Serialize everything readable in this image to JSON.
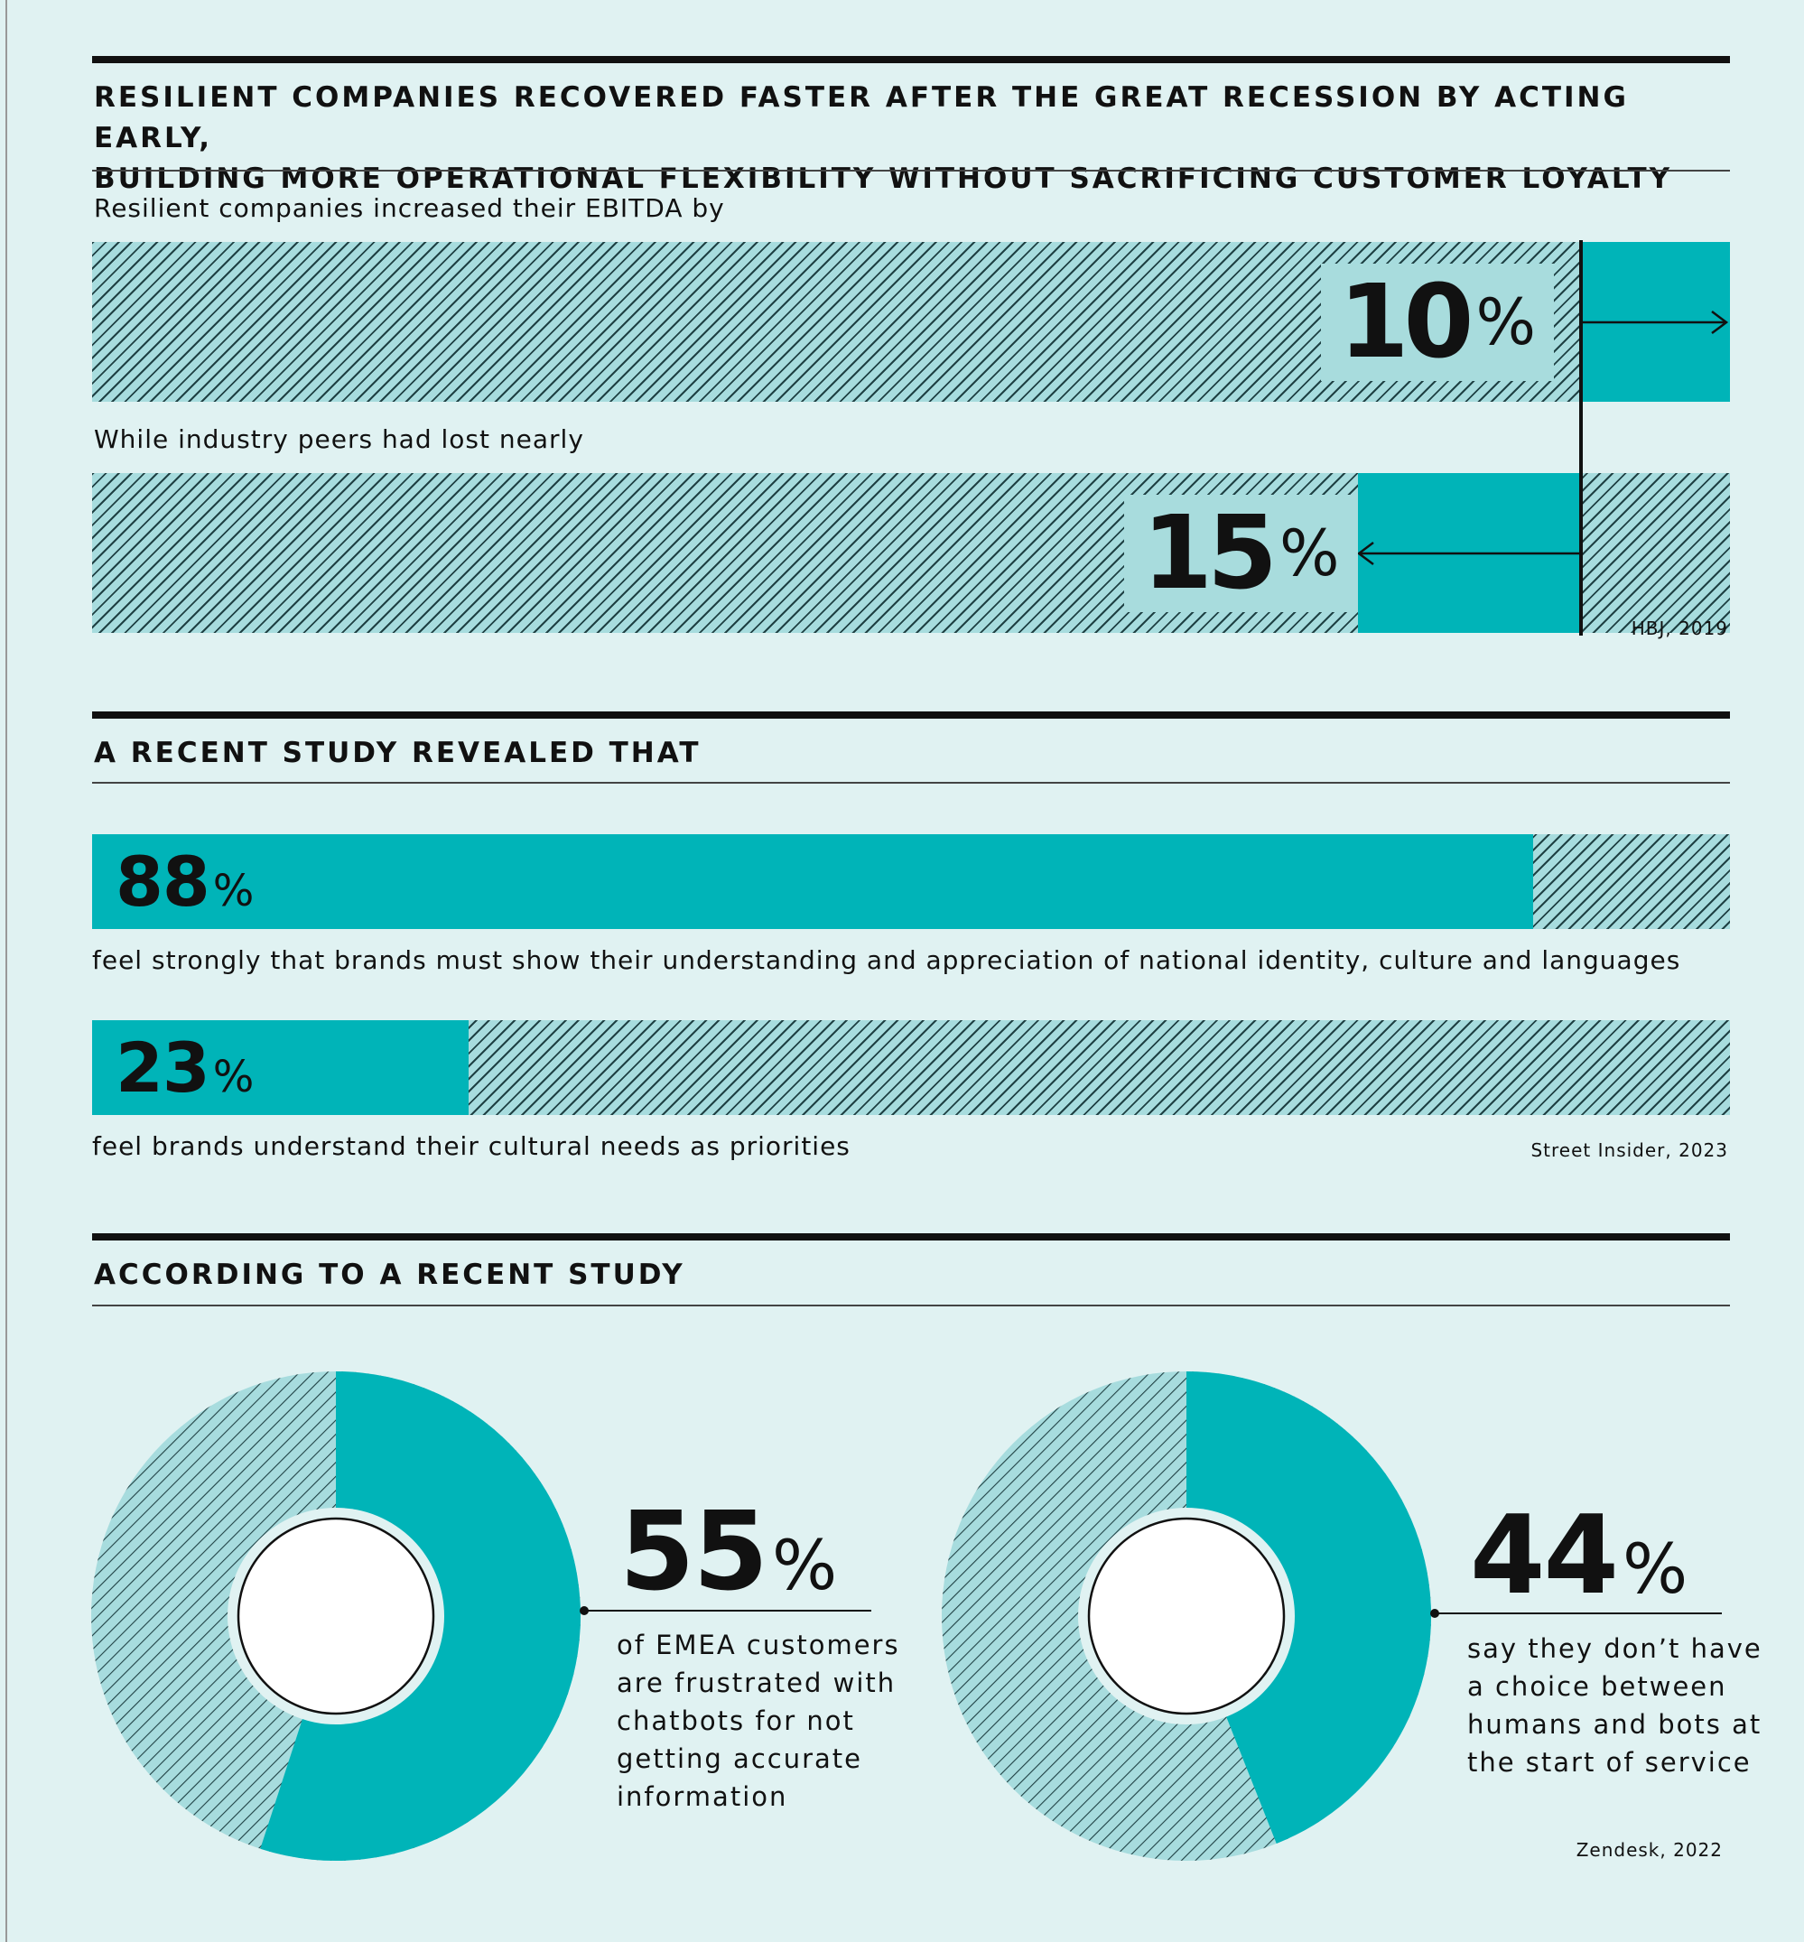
{
  "section1": {
    "heading": "RESILIENT COMPANIES RECOVERED FASTER AFTER THE GREAT RECESSION BY ACTING EARLY,\nBUILDING MORE OPERATIONAL FLEXIBILITY WITHOUT SACRIFICING CUSTOMER LOYALTY",
    "label_1": "Resilient companies increased their EBITDA by",
    "label_2": "While industry peers had lost nearly",
    "source": "HBJ, 2019"
  },
  "section2": {
    "heading": "A RECENT STUDY  REVEALED THAT",
    "caption_1": "feel strongly that brands must show their understanding and appreciation of national identity, culture and languages",
    "caption_2": "feel brands understand their cultural needs as priorities",
    "source": "Street Insider, 2023"
  },
  "section3": {
    "heading": "ACCORDING TO A RECENT  STUDY",
    "desc_1": "of EMEA customers\nare frustrated with\nchatbots for not\ngetting accurate\ninformation",
    "desc_2": "say they don’t have\na choice between\nhumans and bots at\nthe start of service",
    "source": "Zendesk, 2022"
  },
  "colors": {
    "background": "#e0f2f2",
    "accent": "#00b4b8",
    "hatch_base": "#a7dcde",
    "hatch_line": "#1f4144",
    "ink": "#111111"
  },
  "chart_data": [
    {
      "type": "bar",
      "orientation": "horizontal",
      "categories": [
        "Resilient companies increased their EBITDA by",
        "While industry peers had lost nearly"
      ],
      "values": [
        10,
        -15
      ],
      "value_labels": [
        {
          "number": "10",
          "unit": "%"
        },
        {
          "number": "15",
          "unit": "%"
        }
      ],
      "unit": "%"
    },
    {
      "type": "bar",
      "orientation": "horizontal",
      "categories": [
        "feel strongly that brands must show their understanding and appreciation of national identity, culture and languages",
        "feel brands understand their cultural needs as priorities"
      ],
      "values": [
        88,
        23
      ],
      "value_labels": [
        {
          "number": "88",
          "unit": "%"
        },
        {
          "number": "23",
          "unit": "%"
        }
      ],
      "unit": "%",
      "xlim": [
        0,
        100
      ]
    },
    {
      "type": "pie",
      "style": "donut",
      "value": 55,
      "value_label": {
        "number": "55",
        "unit": "%"
      },
      "unit": "%"
    },
    {
      "type": "pie",
      "style": "donut",
      "value": 44,
      "value_label": {
        "number": "44",
        "unit": "%"
      },
      "unit": "%"
    }
  ]
}
